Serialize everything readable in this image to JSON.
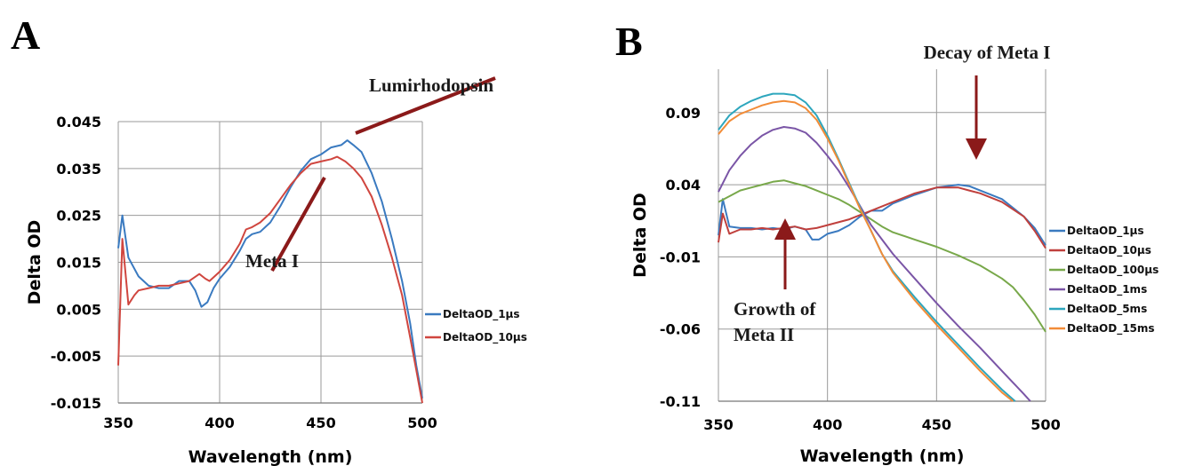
{
  "chart_data": [
    {
      "type": "line",
      "panel_label": "A",
      "xlabel": "Wavelength (nm)",
      "ylabel": "Delta OD",
      "xlim": [
        350,
        500
      ],
      "ylim": [
        -0.015,
        0.045
      ],
      "xticks": [
        350,
        400,
        450,
        500
      ],
      "yticks": [
        -0.015,
        -0.005,
        0.005,
        0.015,
        0.025,
        0.035,
        0.045
      ],
      "ytick_labels": [
        "-0.015",
        "-0.005",
        "0.005",
        "0.015",
        "0.025",
        "0.035",
        "0.045"
      ],
      "grid": true,
      "legend_position": "right",
      "annotations": [
        {
          "text": "Lumirhodopsin",
          "target": [
            462,
            0.04
          ]
        },
        {
          "text": "Meta I",
          "target": [
            456,
            0.034
          ]
        }
      ],
      "series": [
        {
          "name": "DeltaOD_1µs",
          "color": "#3a7ac0",
          "x": [
            350,
            352,
            355,
            360,
            365,
            370,
            375,
            380,
            385,
            388,
            391,
            394,
            397,
            400,
            405,
            410,
            413,
            416,
            420,
            425,
            430,
            435,
            440,
            445,
            450,
            455,
            460,
            463,
            466,
            470,
            475,
            480,
            485,
            490,
            494,
            497,
            500
          ],
          "y": [
            0.018,
            0.025,
            0.016,
            0.012,
            0.01,
            0.0095,
            0.0095,
            0.011,
            0.011,
            0.009,
            0.0055,
            0.0065,
            0.0095,
            0.0115,
            0.014,
            0.0175,
            0.02,
            0.021,
            0.0215,
            0.0235,
            0.027,
            0.031,
            0.0345,
            0.037,
            0.038,
            0.0395,
            0.04,
            0.041,
            0.04,
            0.0385,
            0.034,
            0.028,
            0.02,
            0.011,
            0.002,
            -0.007,
            -0.014
          ]
        },
        {
          "name": "DeltaOD_10µs",
          "color": "#d0463f",
          "x": [
            350,
            352,
            355,
            358,
            360,
            365,
            370,
            375,
            380,
            385,
            390,
            393,
            395,
            400,
            405,
            410,
            413,
            416,
            420,
            425,
            430,
            435,
            440,
            445,
            450,
            455,
            458,
            462,
            466,
            470,
            475,
            480,
            485,
            490,
            494,
            497,
            500
          ],
          "y": [
            -0.007,
            0.02,
            0.006,
            0.008,
            0.009,
            0.0095,
            0.01,
            0.01,
            0.0105,
            0.011,
            0.0125,
            0.0115,
            0.011,
            0.013,
            0.0155,
            0.019,
            0.022,
            0.0225,
            0.0235,
            0.0255,
            0.0285,
            0.0315,
            0.034,
            0.036,
            0.0365,
            0.037,
            0.0375,
            0.0365,
            0.035,
            0.033,
            0.029,
            0.023,
            0.016,
            0.008,
            -0.001,
            -0.008,
            -0.015
          ]
        }
      ]
    },
    {
      "type": "line",
      "panel_label": "B",
      "xlabel": "Wavelength (nm)",
      "ylabel": "Delta OD",
      "xlim": [
        350,
        500
      ],
      "ylim": [
        -0.11,
        0.12
      ],
      "xticks": [
        350,
        400,
        450,
        500
      ],
      "yticks": [
        -0.11,
        -0.06,
        -0.01,
        0.04,
        0.09
      ],
      "ytick_labels": [
        "-0.11",
        "-0.06",
        "-0.01",
        "0.04",
        "0.09"
      ],
      "grid": true,
      "legend_position": "right",
      "annotations": [
        {
          "text": "Decay of Meta I",
          "target": [
            468,
            0.053
          ]
        },
        {
          "text": "Growth of",
          "target": [
            382,
            -0.015
          ]
        },
        {
          "text": "Meta II",
          "target": [
            382,
            -0.015
          ]
        }
      ],
      "series": [
        {
          "name": "DeltaOD_1µs",
          "color": "#3a7ac0",
          "x": [
            350,
            352,
            355,
            360,
            365,
            370,
            375,
            380,
            385,
            390,
            393,
            396,
            400,
            405,
            410,
            415,
            420,
            425,
            430,
            440,
            450,
            460,
            465,
            470,
            480,
            490,
            495,
            500
          ],
          "y": [
            0.005,
            0.03,
            0.011,
            0.01,
            0.01,
            0.009,
            0.01,
            0.009,
            0.011,
            0.009,
            0.002,
            0.002,
            0.006,
            0.008,
            0.012,
            0.018,
            0.022,
            0.022,
            0.027,
            0.033,
            0.038,
            0.04,
            0.039,
            0.036,
            0.03,
            0.018,
            0.01,
            -0.002
          ]
        },
        {
          "name": "DeltaOD_10µs",
          "color": "#c0403d",
          "x": [
            350,
            352,
            355,
            360,
            365,
            370,
            375,
            380,
            385,
            390,
            395,
            400,
            405,
            410,
            415,
            420,
            430,
            440,
            450,
            460,
            465,
            470,
            480,
            490,
            495,
            500
          ],
          "y": [
            0.0,
            0.02,
            0.006,
            0.009,
            0.009,
            0.01,
            0.009,
            0.01,
            0.011,
            0.009,
            0.01,
            0.012,
            0.014,
            0.016,
            0.019,
            0.022,
            0.028,
            0.034,
            0.038,
            0.038,
            0.036,
            0.034,
            0.028,
            0.018,
            0.008,
            -0.004
          ]
        },
        {
          "name": "DeltaOD_100µs",
          "color": "#78a84a",
          "x": [
            350,
            355,
            360,
            365,
            370,
            375,
            380,
            385,
            390,
            395,
            400,
            405,
            410,
            415,
            420,
            425,
            430,
            440,
            450,
            460,
            470,
            480,
            485,
            490,
            495,
            500
          ],
          "y": [
            0.028,
            0.032,
            0.036,
            0.038,
            0.04,
            0.042,
            0.043,
            0.041,
            0.039,
            0.036,
            0.033,
            0.03,
            0.026,
            0.021,
            0.016,
            0.011,
            0.007,
            0.002,
            -0.003,
            -0.009,
            -0.016,
            -0.025,
            -0.031,
            -0.04,
            -0.05,
            -0.062
          ]
        },
        {
          "name": "DeltaOD_1ms",
          "color": "#7a55a6",
          "x": [
            350,
            355,
            360,
            365,
            370,
            375,
            380,
            385,
            390,
            395,
            400,
            405,
            410,
            415,
            420,
            425,
            430,
            440,
            450,
            460,
            470,
            480,
            485,
            490,
            493
          ],
          "y": [
            0.035,
            0.05,
            0.06,
            0.068,
            0.074,
            0.078,
            0.08,
            0.079,
            0.076,
            0.069,
            0.06,
            0.05,
            0.038,
            0.025,
            0.012,
            0.002,
            -0.008,
            -0.025,
            -0.042,
            -0.058,
            -0.073,
            -0.089,
            -0.097,
            -0.105,
            -0.11
          ]
        },
        {
          "name": "DeltaOD_5ms",
          "color": "#2da6bd",
          "x": [
            350,
            355,
            360,
            365,
            370,
            375,
            380,
            385,
            390,
            395,
            400,
            405,
            410,
            415,
            420,
            425,
            430,
            440,
            450,
            460,
            470,
            480,
            486
          ],
          "y": [
            0.078,
            0.088,
            0.094,
            0.098,
            0.101,
            0.103,
            0.103,
            0.102,
            0.097,
            0.088,
            0.074,
            0.058,
            0.041,
            0.024,
            0.008,
            -0.008,
            -0.02,
            -0.038,
            -0.055,
            -0.071,
            -0.087,
            -0.102,
            -0.11
          ]
        },
        {
          "name": "DeltaOD_15ms",
          "color": "#f28c38",
          "x": [
            350,
            355,
            360,
            365,
            370,
            375,
            380,
            385,
            390,
            395,
            400,
            405,
            410,
            415,
            420,
            425,
            430,
            440,
            450,
            460,
            470,
            480,
            485
          ],
          "y": [
            0.075,
            0.084,
            0.089,
            0.092,
            0.095,
            0.097,
            0.098,
            0.097,
            0.093,
            0.085,
            0.072,
            0.057,
            0.04,
            0.023,
            0.008,
            -0.008,
            -0.021,
            -0.04,
            -0.057,
            -0.073,
            -0.089,
            -0.104,
            -0.11
          ]
        }
      ]
    }
  ]
}
